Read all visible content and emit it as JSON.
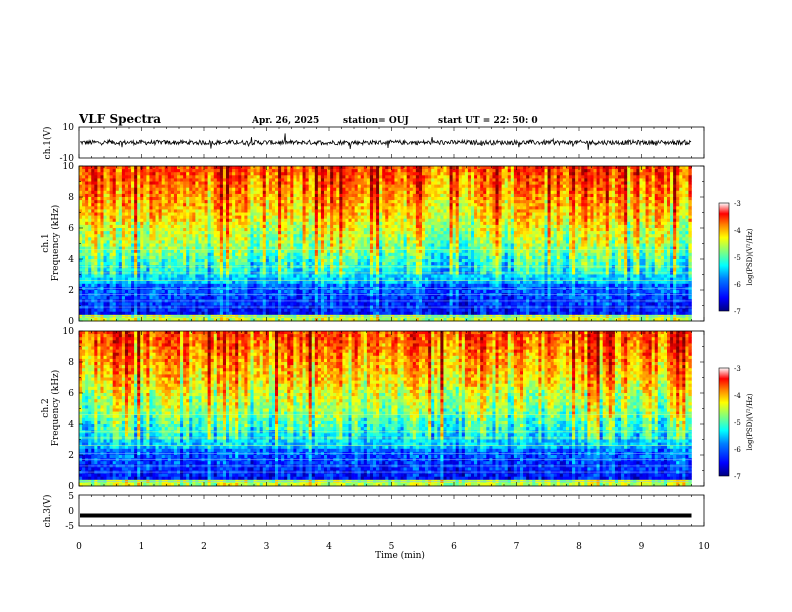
{
  "header": {
    "title": "VLF Spectra",
    "date": "Apr. 26, 2025",
    "station": "station= OUJ",
    "start": "start  UT  =   22: 50: 0"
  },
  "chart_data": [
    {
      "id": "ch1-waveform",
      "type": "line",
      "ylabel": "ch.1(V)",
      "ylim": [
        -10,
        10
      ],
      "yticks": [
        "10",
        "-10"
      ],
      "xlim": [
        0,
        10
      ],
      "baseline": 0,
      "noise_amplitude": 1.5
    },
    {
      "id": "ch1-spectrogram",
      "type": "heatmap",
      "ylabel": "ch.1",
      "ylabel2": "Frequency  (kHz)",
      "ylim": [
        0,
        10
      ],
      "yticks": [
        "0",
        "2",
        "4",
        "6",
        "8",
        "10"
      ],
      "xlim": [
        0,
        10
      ],
      "data_end_min": 9.8,
      "colorbar": {
        "label": "log(PSD)(V²/Hz)",
        "range": [
          -7,
          -3
        ],
        "ticks": [
          "-3",
          "-4",
          "-5",
          "-6",
          "-7"
        ]
      }
    },
    {
      "id": "ch2-spectrogram",
      "type": "heatmap",
      "ylabel": "ch.2",
      "ylabel2": "Frequency  (kHz)",
      "ylim": [
        0,
        10
      ],
      "yticks": [
        "0",
        "2",
        "4",
        "6",
        "8",
        "10"
      ],
      "xlim": [
        0,
        10
      ],
      "data_end_min": 9.8,
      "colorbar": {
        "label": "log(PSD)(V²/Hz)",
        "range": [
          -7,
          -3
        ],
        "ticks": [
          "-3",
          "-4",
          "-5",
          "-6",
          "-7"
        ]
      }
    },
    {
      "id": "ch3-waveform",
      "type": "line",
      "ylabel": "ch.3(V)",
      "ylim": [
        -5,
        5
      ],
      "yticks": [
        "5",
        "0",
        "-5"
      ],
      "xlim": [
        0,
        10
      ],
      "baseline": -1.6,
      "xlabel": "Time  (min)",
      "xticks": [
        "0",
        "1",
        "2",
        "3",
        "4",
        "5",
        "6",
        "7",
        "8",
        "9",
        "10"
      ]
    }
  ],
  "colors": {
    "jet": [
      "#00007f",
      "#0000ff",
      "#007fff",
      "#00ffff",
      "#7fff7f",
      "#ffff00",
      "#ff7f00",
      "#ff0000",
      "#7f0000"
    ]
  }
}
